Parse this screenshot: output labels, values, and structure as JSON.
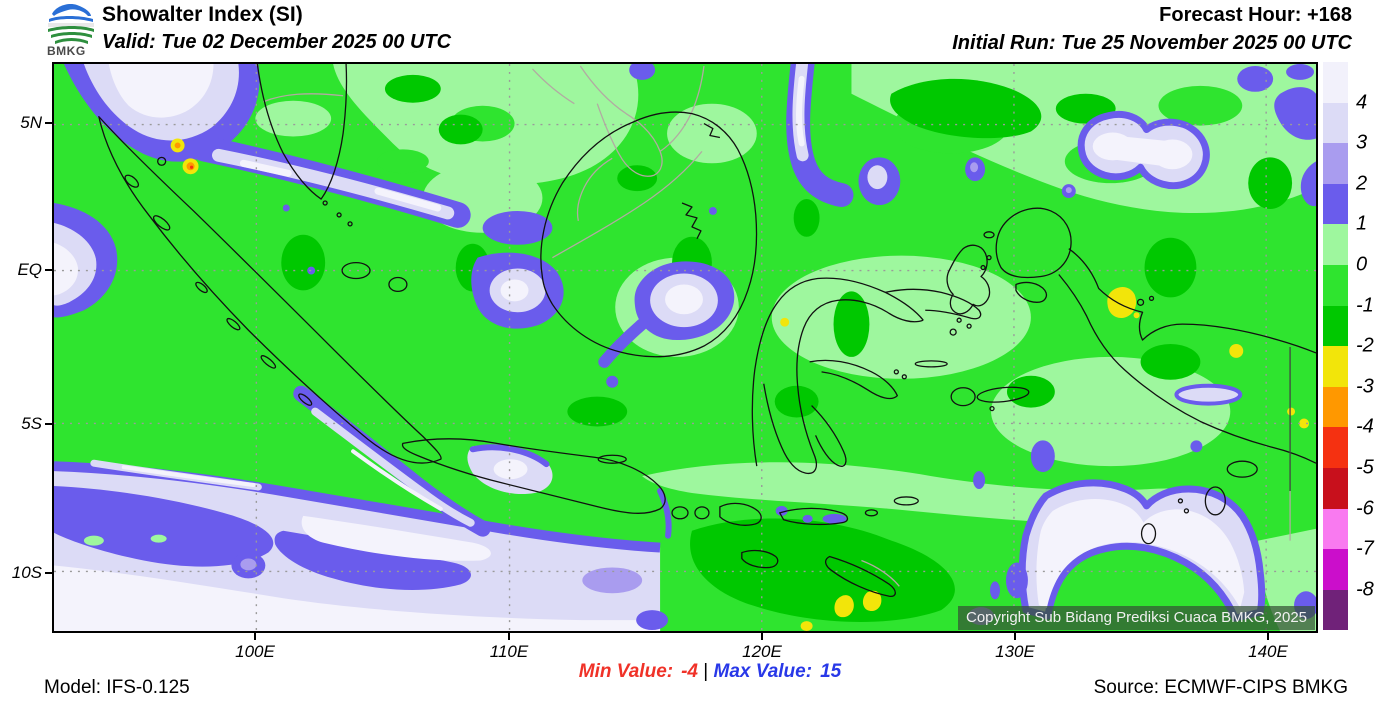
{
  "header": {
    "logo_text": "BMKG",
    "title": "Showalter Index (SI)",
    "valid": "Valid: Tue 02 December 2025 00 UTC",
    "forecast_hour": "Forecast Hour: +168",
    "initial_run": "Initial Run: Tue 25 November 2025 00 UTC"
  },
  "map": {
    "copyright": "Copyright Sub Bidang Prediksi Cuaca BMKG, 2025",
    "lat_labels": [
      "5N",
      "EQ",
      "5S",
      "10S"
    ],
    "lon_labels": [
      "100E",
      "110E",
      "120E",
      "130E",
      "140E"
    ]
  },
  "colorbar": {
    "tick_labels": [
      "4",
      "3",
      "2",
      "1",
      "0",
      "-1",
      "-2",
      "-3",
      "-4",
      "-5",
      "-6",
      "-7",
      "-8"
    ],
    "segment_colors": [
      "#f2f1fb",
      "#dcdbf6",
      "#a99cef",
      "#6a5cec",
      "#9ef79e",
      "#2fe42f",
      "#00c800",
      "#f2e50a",
      "#ff9800",
      "#f53111",
      "#c8101c",
      "#f97af0",
      "#cb0ecb",
      "#702279"
    ]
  },
  "footer": {
    "model": "Model: IFS-0.125",
    "min_label": "Min Value:",
    "min_value": "-4",
    "separator": "|",
    "max_label": "Max Value:",
    "max_value": "15",
    "source": "Source: ECMWF-CIPS BMKG",
    "min_color": "#f03228",
    "max_color": "#2838e8"
  },
  "chart_data": {
    "type": "heatmap",
    "subtype": "filled_contour_map",
    "variable": "Showalter Index (SI)",
    "levels": [
      4,
      3,
      2,
      1,
      0,
      -1,
      -2,
      -3,
      -4,
      -5,
      -6,
      -7,
      -8
    ],
    "level_colors": [
      "#f2f1fb",
      "#dcdbf6",
      "#a99cef",
      "#6a5cec",
      "#9ef79e",
      "#2fe42f",
      "#00c800",
      "#f2e50a",
      "#ff9800",
      "#f53111",
      "#c8101c",
      "#f97af0",
      "#cb0ecb",
      "#702279"
    ],
    "min_value": -4,
    "max_value": 15,
    "lat_ticks": [
      "5N",
      "EQ",
      "5S",
      "10S"
    ],
    "lon_ticks": [
      "100E",
      "110E",
      "120E",
      "130E",
      "140E"
    ],
    "approx_extent": {
      "west": "92E",
      "east": "142E",
      "north": "7N",
      "south": "12S"
    },
    "dominant_field_note": "Mostly SI 0 to -2 (greens) over the region; SI 1 to >4 (purple/white) over NW Sumatra, west of Sumatra, southern Indian Ocean south of Java, Makassar Strait, north of Papua and Arafura Sea; isolated SI -2 to -4 (yellow/orange) spots over N Sumatra, Sulawesi, Papua and near Timor",
    "model": "IFS-0.125",
    "source": "ECMWF-CIPS BMKG",
    "forecast_hour": "+168",
    "valid_time": "Tue 02 December 2025 00 UTC",
    "initial_run": "Tue 25 November 2025 00 UTC"
  }
}
